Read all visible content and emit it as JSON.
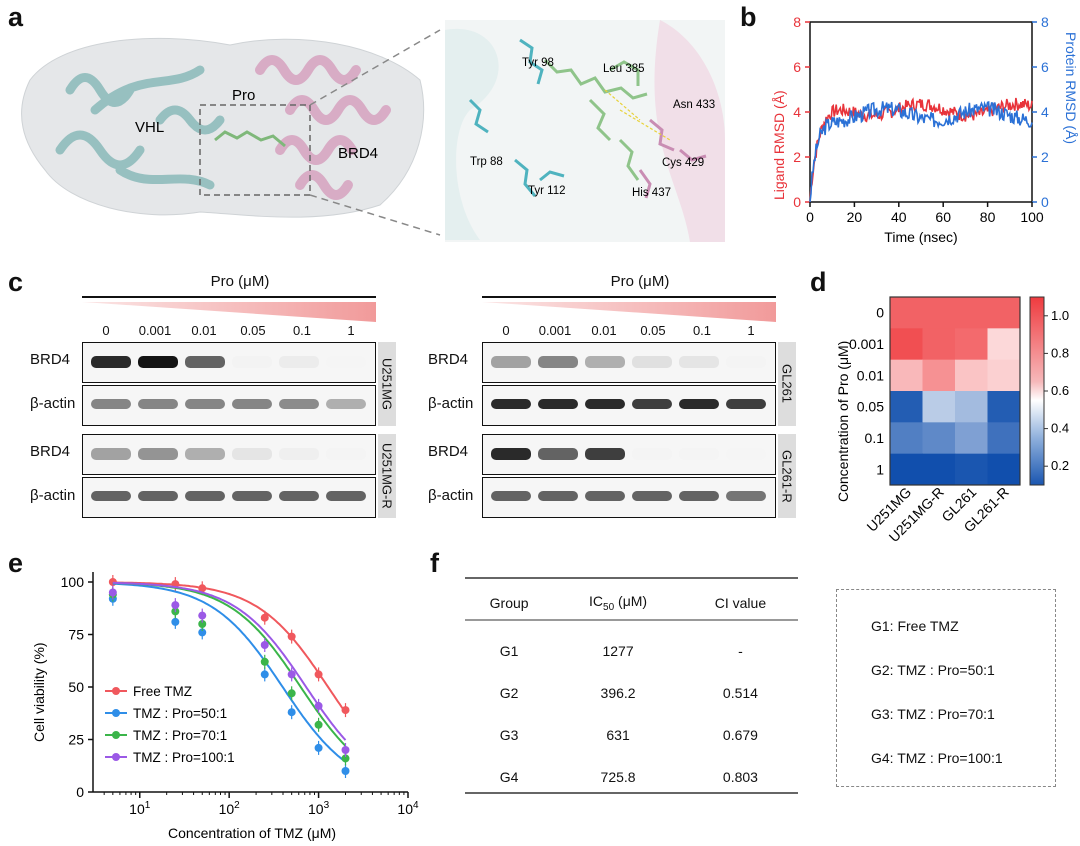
{
  "panels": {
    "a": "a",
    "b": "b",
    "c": "c",
    "d": "d",
    "e": "e",
    "f": "f"
  },
  "structure": {
    "vhl": "VHL",
    "pro": "Pro",
    "brd4": "BRD4",
    "residues": [
      "Tyr 98",
      "Leu 385",
      "Asn 433",
      "Trp 88",
      "Tyr 112",
      "Cys 429",
      "His 437"
    ]
  },
  "rmsd": {
    "ylabel_left": "Ligand RMSD (Å)",
    "ylabel_right": "Protein RMSD (Å)",
    "xlabel": "Time (nsec)",
    "yticks": [
      "0",
      "2",
      "4",
      "6",
      "8"
    ],
    "xticks": [
      "0",
      "20",
      "40",
      "60",
      "80",
      "100"
    ],
    "colors": {
      "ligand": "#e8333a",
      "protein": "#2b71d6"
    }
  },
  "western": {
    "title": "Pro (μM)",
    "concentrations": [
      "0",
      "0.001",
      "0.01",
      "0.05",
      "0.1",
      "1"
    ],
    "brd4": "BRD4",
    "actin": "β-actin",
    "cells": [
      "U251MG",
      "U251MG-R",
      "GL261",
      "GL261-R"
    ]
  },
  "heatmap": {
    "ylabel": "Concentration of Pro (μM)",
    "rows": [
      "0",
      "0.001",
      "0.01",
      "0.05",
      "0.1",
      "1"
    ],
    "cols": [
      "U251MG",
      "U251MG-R",
      "GL261",
      "GL261-R"
    ],
    "values": [
      [
        1.0,
        1.0,
        1.0,
        1.0
      ],
      [
        1.05,
        1.0,
        0.98,
        0.7
      ],
      [
        0.78,
        0.88,
        0.75,
        0.72
      ],
      [
        0.12,
        0.45,
        0.4,
        0.12
      ],
      [
        0.22,
        0.25,
        0.32,
        0.18
      ],
      [
        0.08,
        0.08,
        0.1,
        0.08
      ]
    ],
    "cbar_ticks": [
      "1.0",
      "0.8",
      "0.6",
      "0.4",
      "0.2"
    ]
  },
  "viability": {
    "ylabel": "Cell viability (%)",
    "xlabel": "Concentration of TMZ (μM)",
    "yticks": [
      "0",
      "25",
      "50",
      "75",
      "100"
    ],
    "legend": [
      "Free TMZ",
      "TMZ : Pro=50:1",
      "TMZ : Pro=70:1",
      "TMZ : Pro=100:1"
    ],
    "colors": [
      "#f0585d",
      "#2f8ee8",
      "#3bb54a",
      "#9b59e6"
    ]
  },
  "chart_data": {
    "type": "scatter",
    "title": "",
    "xlabel": "Concentration of TMZ (μM)",
    "ylabel": "Cell viability (%)",
    "xscale": "log",
    "xlim": [
      3,
      10000
    ],
    "ylim": [
      0,
      105
    ],
    "x": [
      5,
      25,
      50,
      250,
      500,
      1000,
      2000
    ],
    "series": [
      {
        "name": "Free TMZ",
        "ic50": 1277,
        "values": [
          100,
          99,
          97,
          83,
          74,
          56,
          39
        ]
      },
      {
        "name": "TMZ : Pro=50:1",
        "ic50": 396.2,
        "values": [
          92,
          81,
          76,
          56,
          38,
          21,
          10
        ]
      },
      {
        "name": "TMZ : Pro=70:1",
        "ic50": 631,
        "values": [
          94,
          86,
          80,
          62,
          47,
          32,
          16
        ]
      },
      {
        "name": "TMZ : Pro=100:1",
        "ic50": 725.8,
        "values": [
          95,
          89,
          84,
          70,
          56,
          41,
          20
        ]
      }
    ]
  },
  "table": {
    "headers": {
      "group": "Group",
      "ic_prefix": "IC",
      "ic_sub": "50",
      "ic_suffix": " (μM)",
      "ci": "CI value"
    },
    "rows": [
      {
        "g": "G1",
        "ic": "1277",
        "ci": "-"
      },
      {
        "g": "G2",
        "ic": "396.2",
        "ci": "0.514"
      },
      {
        "g": "G3",
        "ic": "631",
        "ci": "0.679"
      },
      {
        "g": "G4",
        "ic": "725.8",
        "ci": "0.803"
      }
    ]
  },
  "groups": [
    "G1: Free TMZ",
    "G2: TMZ : Pro=50:1",
    "G3: TMZ : Pro=70:1",
    "G4: TMZ : Pro=100:1"
  ]
}
